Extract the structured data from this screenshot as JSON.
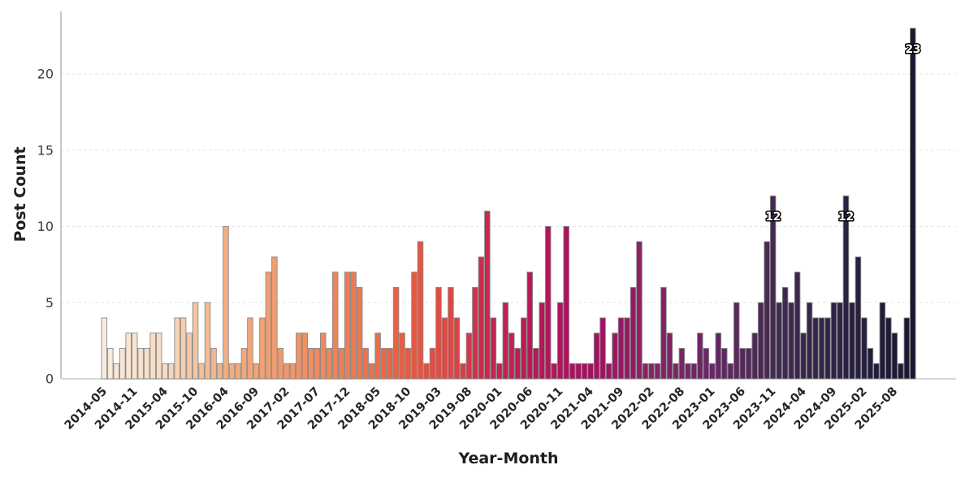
{
  "page": {
    "background": "#ffffff"
  },
  "chart_data": {
    "type": "bar",
    "title": "",
    "xlabel": "Year-Month",
    "ylabel": "Post Count",
    "ylim": [
      0,
      24.3
    ],
    "yticks": [
      0,
      5,
      10,
      15,
      20
    ],
    "grid": {
      "axis": "y",
      "style": "dashed",
      "color": "#e6e6e6",
      "legend": "none"
    },
    "x_tick_every": 5,
    "x_tick_labels": [
      "2014-05",
      "2014-11",
      "2015-04",
      "2015-10",
      "2016-04",
      "2016-09",
      "2017-02",
      "2017-07",
      "2017-12",
      "2018-05",
      "2018-10",
      "2019-03",
      "2019-08",
      "2020-01",
      "2020-06",
      "2020-11",
      "2021-04",
      "2021-09",
      "2022-02",
      "2022-08",
      "2023-01",
      "2023-06",
      "2023-11",
      "2024-04",
      "2024-09",
      "2025-02",
      "2025-08"
    ],
    "bar_count": 134,
    "values": [
      4,
      2,
      1,
      2,
      3,
      3,
      2,
      2,
      3,
      3,
      1,
      1,
      4,
      4,
      3,
      5,
      1,
      5,
      2,
      1,
      10,
      1,
      1,
      2,
      4,
      1,
      4,
      7,
      8,
      2,
      1,
      1,
      3,
      3,
      2,
      2,
      3,
      2,
      7,
      2,
      7,
      7,
      6,
      2,
      1,
      3,
      2,
      2,
      6,
      3,
      2,
      7,
      9,
      1,
      2,
      6,
      4,
      6,
      4,
      1,
      3,
      6,
      8,
      11,
      4,
      1,
      5,
      3,
      2,
      4,
      7,
      2,
      5,
      10,
      1,
      5,
      10,
      1,
      1,
      1,
      1,
      3,
      4,
      1,
      3,
      4,
      4,
      6,
      9,
      1,
      1,
      1,
      6,
      3,
      1,
      2,
      1,
      1,
      3,
      2,
      1,
      3,
      2,
      1,
      5,
      2,
      2,
      3,
      5,
      9,
      12,
      5,
      6,
      5,
      7,
      3,
      5,
      4,
      4,
      4,
      5,
      5,
      12,
      5,
      8,
      4,
      2,
      1,
      5,
      4,
      3,
      1,
      4,
      23
    ],
    "annotations": [
      {
        "bar_index": 110,
        "text": "12"
      },
      {
        "bar_index": 122,
        "text": "12"
      },
      {
        "bar_index": 133,
        "text": "23"
      }
    ],
    "annotation_style": {
      "fill": "#ffffff",
      "outline": "#000000"
    },
    "palette": {
      "name": "rocket_r-light-to-dark",
      "stops": [
        [
          0.0,
          "#F8EBDE"
        ],
        [
          0.075,
          "#F7DCC2"
        ],
        [
          0.15,
          "#F3AE81"
        ],
        [
          0.225,
          "#F0996C"
        ],
        [
          0.3,
          "#EE7E53"
        ],
        [
          0.375,
          "#E85B3F"
        ],
        [
          0.43,
          "#DE4643"
        ],
        [
          0.475,
          "#C9254E"
        ],
        [
          0.53,
          "#B91758"
        ],
        [
          0.6,
          "#A60F60"
        ],
        [
          0.675,
          "#8A2165"
        ],
        [
          0.75,
          "#682766"
        ],
        [
          0.825,
          "#452A51"
        ],
        [
          0.9,
          "#2F2347"
        ],
        [
          1.0,
          "#181830"
        ]
      ]
    },
    "bar_edge_color": "#8a8a8a",
    "axis_colors": {
      "spine_left": "#a3a3a3",
      "spine_bottom": "#cbcbcb",
      "y_tick_label": "#3d3d3d",
      "x_tick_label": "#262626",
      "axis_label": "#1f1f1f"
    }
  }
}
